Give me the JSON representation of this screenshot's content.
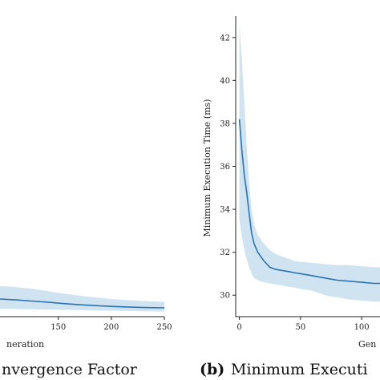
{
  "chart_data": [
    {
      "type": "line",
      "caption": "nvergence Factor",
      "xlabel": "neration",
      "ylabel": "",
      "x_ticks": [
        150,
        200,
        250
      ],
      "xlim": [
        95,
        250
      ],
      "ylim": [
        0,
        1
      ],
      "series": [
        {
          "color": "#2a74b3",
          "band_color": "#cfe3f1",
          "x": [
            95,
            110,
            125,
            140,
            155,
            170,
            185,
            200,
            215,
            230,
            250
          ],
          "y": [
            0.062,
            0.059,
            0.055,
            0.051,
            0.046,
            0.042,
            0.039,
            0.036,
            0.034,
            0.032,
            0.031
          ],
          "lower": [
            0.028,
            0.027,
            0.026,
            0.025,
            0.024,
            0.023,
            0.022,
            0.021,
            0.02,
            0.019,
            0.018
          ],
          "upper": [
            0.108,
            0.104,
            0.098,
            0.09,
            0.081,
            0.074,
            0.068,
            0.062,
            0.058,
            0.055,
            0.052
          ]
        }
      ]
    },
    {
      "type": "line",
      "caption_label": "(b)",
      "caption": "Minimum Executi",
      "xlabel": "Gen",
      "ylabel": "Minimum Execution Time (ms)",
      "x_ticks": [
        0,
        50,
        100
      ],
      "y_ticks": [
        30,
        32,
        34,
        36,
        38,
        40,
        42
      ],
      "xlim": [
        -3,
        115
      ],
      "ylim": [
        29.0,
        43.0
      ],
      "series": [
        {
          "color": "#2a74b3",
          "band_color": "#cfe3f1",
          "x": [
            0,
            2,
            4,
            6,
            8,
            10,
            12,
            15,
            20,
            25,
            30,
            35,
            40,
            45,
            50,
            60,
            70,
            80,
            90,
            100,
            110,
            115
          ],
          "y": [
            38.2,
            36.8,
            35.6,
            34.8,
            33.8,
            32.9,
            32.4,
            32.0,
            31.6,
            31.3,
            31.2,
            31.15,
            31.1,
            31.05,
            31.0,
            30.9,
            30.8,
            30.7,
            30.65,
            30.6,
            30.55,
            30.55
          ],
          "lower": [
            33.5,
            32.8,
            32.1,
            31.7,
            31.3,
            31.0,
            30.8,
            30.7,
            30.6,
            30.55,
            30.5,
            30.45,
            30.4,
            30.35,
            30.3,
            30.2,
            30.0,
            29.9,
            29.8,
            29.75,
            29.7,
            29.7
          ],
          "upper": [
            42.6,
            41.0,
            39.0,
            37.0,
            35.2,
            34.0,
            33.3,
            32.8,
            32.4,
            32.1,
            31.9,
            31.8,
            31.7,
            31.6,
            31.55,
            31.5,
            31.45,
            31.4,
            31.4,
            31.35,
            31.3,
            31.3
          ]
        }
      ]
    }
  ]
}
